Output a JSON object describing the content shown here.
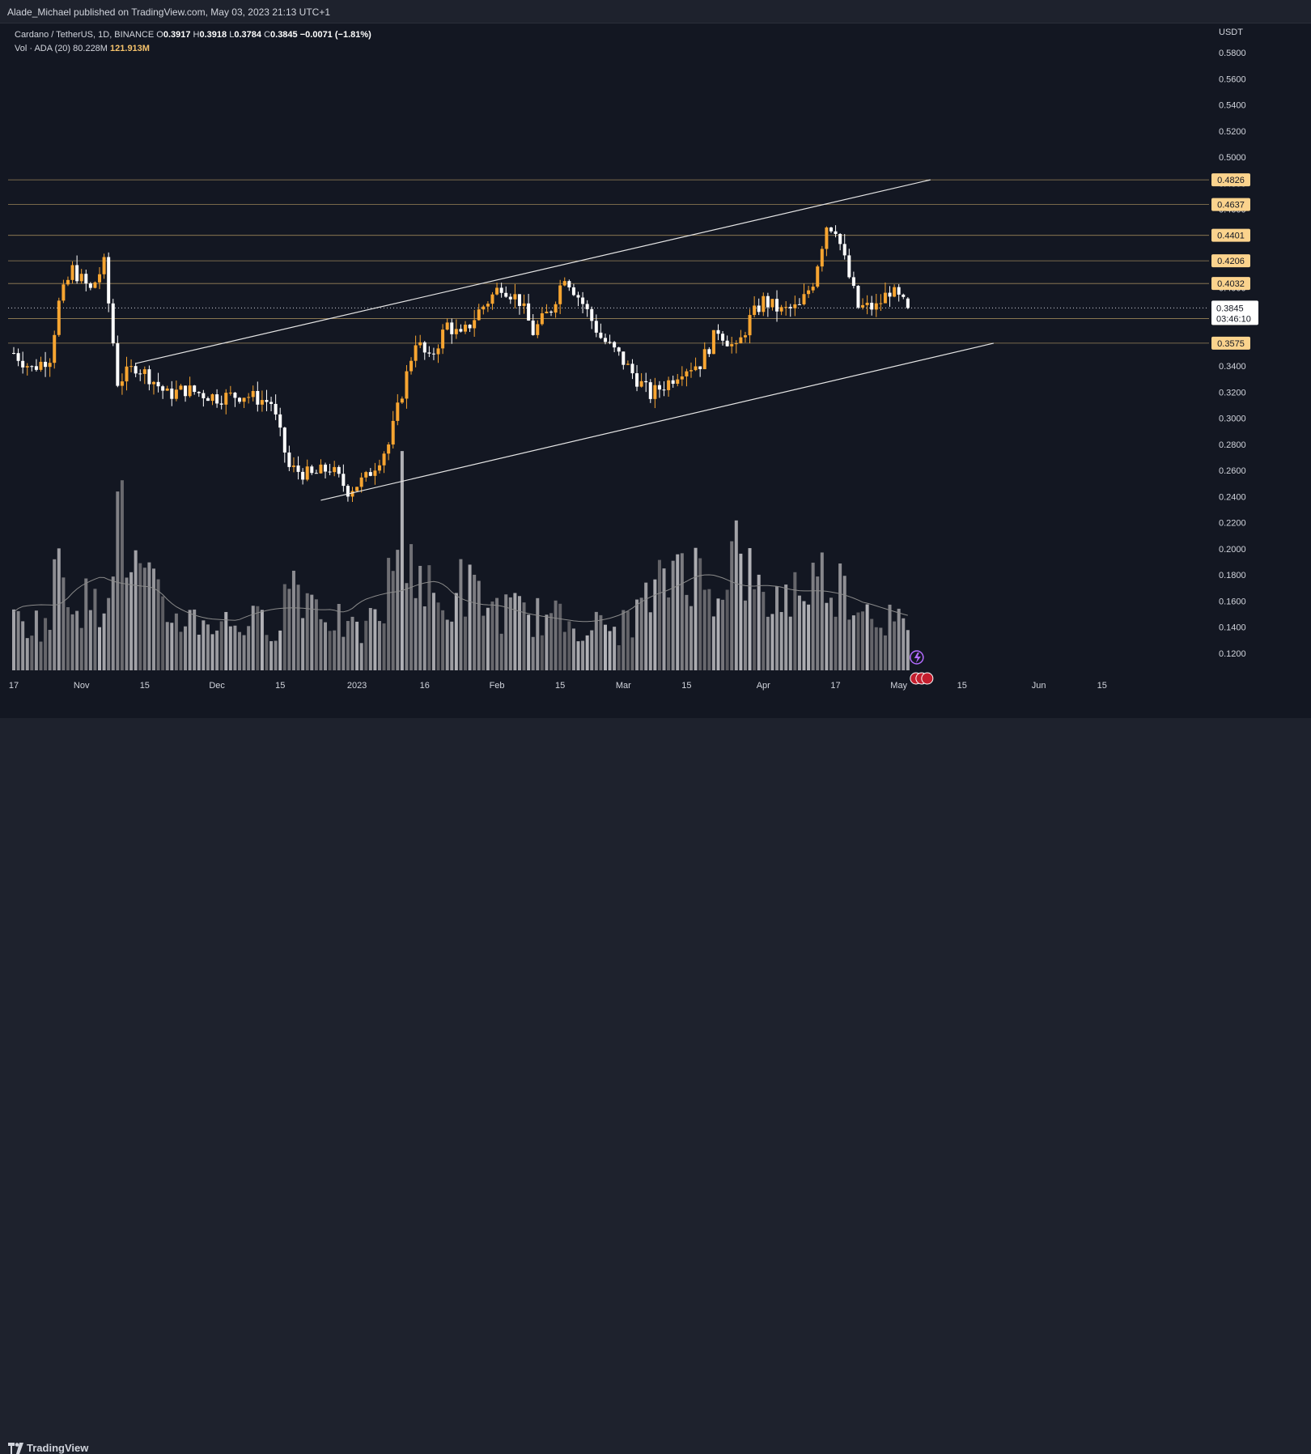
{
  "header": {
    "publisher_line": "Alade_Michael published on TradingView.com, May 03, 2023 21:13 UTC+1"
  },
  "legend": {
    "symbol": "Cardano / TetherUS, 1D, BINANCE",
    "o_label": "O",
    "o_value": "0.3917",
    "h_label": "H",
    "h_value": "0.3918",
    "l_label": "L",
    "l_value": "0.3784",
    "c_label": "C",
    "c_value": "0.3845",
    "change": "−0.0071 (−1.81%)",
    "vol_label": "Vol · ADA (20)",
    "vol_value": "80.228M",
    "vol_ma": "121.913M"
  },
  "footer": {
    "brand": "TradingView"
  },
  "colors": {
    "background": "#131722",
    "up_candle": "#f7a531",
    "down_candle": "#ffffff",
    "level_line": "#c8a86a",
    "price_tag": "#fbd38d",
    "current_tag": "#ffffff"
  },
  "chart_data": {
    "type": "candlestick",
    "symbol": "ADAUSDT",
    "interval": "1D",
    "y_unit": "USDT",
    "ylim": [
      0.11,
      0.595
    ],
    "y_ticks": [
      "0.5800",
      "0.5600",
      "0.5400",
      "0.5200",
      "0.5000",
      "0.4800",
      "0.4600",
      "0.4400",
      "0.4200",
      "0.4000",
      "0.3800",
      "0.3600",
      "0.3400",
      "0.3200",
      "0.3000",
      "0.2800",
      "0.2600",
      "0.2400",
      "0.2200",
      "0.2000",
      "0.1800",
      "0.1600",
      "0.1400",
      "0.1200"
    ],
    "x_tick_labels": [
      {
        "date": "2022-10-17",
        "label": "17"
      },
      {
        "date": "2022-11-01",
        "label": "Nov"
      },
      {
        "date": "2022-11-15",
        "label": "15"
      },
      {
        "date": "2022-12-01",
        "label": "Dec"
      },
      {
        "date": "2022-12-15",
        "label": "15"
      },
      {
        "date": "2023-01-01",
        "label": "2023"
      },
      {
        "date": "2023-01-16",
        "label": "16"
      },
      {
        "date": "2023-02-01",
        "label": "Feb"
      },
      {
        "date": "2023-02-15",
        "label": "15"
      },
      {
        "date": "2023-03-01",
        "label": "Mar"
      },
      {
        "date": "2023-03-15",
        "label": "15"
      },
      {
        "date": "2023-04-01",
        "label": "Apr"
      },
      {
        "date": "2023-04-17",
        "label": "17"
      },
      {
        "date": "2023-05-01",
        "label": "May"
      },
      {
        "date": "2023-05-15",
        "label": "15"
      },
      {
        "date": "2023-06-01",
        "label": "Jun"
      },
      {
        "date": "2023-06-15",
        "label": "15"
      }
    ],
    "x_range": [
      "2022-10-17",
      "2023-06-25"
    ],
    "price_levels": [
      {
        "value": 0.4826,
        "label": "0.4826"
      },
      {
        "value": 0.4637,
        "label": "0.4637"
      },
      {
        "value": 0.4401,
        "label": "0.4401"
      },
      {
        "value": 0.4206,
        "label": "0.4206"
      },
      {
        "value": 0.4032,
        "label": "0.4032"
      },
      {
        "value": 0.3764,
        "label": "0.3764"
      },
      {
        "value": 0.3575,
        "label": "0.3575"
      }
    ],
    "current_price": {
      "value": 0.3845,
      "label": "0.3845",
      "countdown": "03:46:10"
    },
    "trendlines": [
      {
        "from": {
          "date": "2022-11-13",
          "price": 0.342
        },
        "to": {
          "date": "2023-05-08",
          "price": 0.4826
        }
      },
      {
        "from": {
          "date": "2022-12-24",
          "price": 0.2372
        },
        "to": {
          "date": "2023-05-22",
          "price": 0.3575
        }
      }
    ],
    "series": [
      {
        "name": "Price",
        "kind": "ohlc_key_points",
        "points": [
          [
            "2022-10-17",
            0.35
          ],
          [
            "2022-10-21",
            0.338
          ],
          [
            "2022-10-25",
            0.347
          ],
          [
            "2022-10-27",
            0.388
          ],
          [
            "2022-10-30",
            0.414
          ],
          [
            "2022-11-03",
            0.398
          ],
          [
            "2022-11-06",
            0.418
          ],
          [
            "2022-11-09",
            0.328
          ],
          [
            "2022-11-13",
            0.34
          ],
          [
            "2022-11-16",
            0.332
          ],
          [
            "2022-11-20",
            0.318
          ],
          [
            "2022-11-24",
            0.322
          ],
          [
            "2022-12-01",
            0.316
          ],
          [
            "2022-12-07",
            0.318
          ],
          [
            "2022-12-13",
            0.312
          ],
          [
            "2022-12-17",
            0.262
          ],
          [
            "2022-12-22",
            0.256
          ],
          [
            "2022-12-26",
            0.262
          ],
          [
            "2022-12-30",
            0.245
          ],
          [
            "2023-01-03",
            0.254
          ],
          [
            "2023-01-08",
            0.28
          ],
          [
            "2023-01-11",
            0.32
          ],
          [
            "2023-01-14",
            0.36
          ],
          [
            "2023-01-17",
            0.344
          ],
          [
            "2023-01-21",
            0.372
          ],
          [
            "2023-01-24",
            0.362
          ],
          [
            "2023-01-28",
            0.382
          ],
          [
            "2023-02-02",
            0.402
          ],
          [
            "2023-02-06",
            0.39
          ],
          [
            "2023-02-09",
            0.366
          ],
          [
            "2023-02-13",
            0.384
          ],
          [
            "2023-02-16",
            0.41
          ],
          [
            "2023-02-20",
            0.388
          ],
          [
            "2023-02-24",
            0.362
          ],
          [
            "2023-02-28",
            0.348
          ],
          [
            "2023-03-04",
            0.33
          ],
          [
            "2023-03-07",
            0.318
          ],
          [
            "2023-03-11",
            0.328
          ],
          [
            "2023-03-14",
            0.338
          ],
          [
            "2023-03-18",
            0.342
          ],
          [
            "2023-03-22",
            0.368
          ],
          [
            "2023-03-26",
            0.352
          ],
          [
            "2023-03-29",
            0.376
          ],
          [
            "2023-04-01",
            0.39
          ],
          [
            "2023-04-05",
            0.382
          ],
          [
            "2023-04-09",
            0.385
          ],
          [
            "2023-04-12",
            0.405
          ],
          [
            "2023-04-15",
            0.448
          ],
          [
            "2023-04-17",
            0.446
          ],
          [
            "2023-04-20",
            0.408
          ],
          [
            "2023-04-22",
            0.385
          ],
          [
            "2023-04-26",
            0.385
          ],
          [
            "2023-04-29",
            0.398
          ],
          [
            "2023-05-03",
            0.3845
          ]
        ]
      },
      {
        "name": "Vol · ADA (20)",
        "kind": "volume_key_points",
        "unit": "M",
        "points": [
          [
            "2022-10-17",
            95
          ],
          [
            "2022-10-25",
            95
          ],
          [
            "2022-10-27",
            240
          ],
          [
            "2022-10-30",
            150
          ],
          [
            "2022-11-05",
            120
          ],
          [
            "2022-11-09",
            320
          ],
          [
            "2022-11-12",
            210
          ],
          [
            "2022-11-20",
            110
          ],
          [
            "2022-12-01",
            95
          ],
          [
            "2022-12-15",
            95
          ],
          [
            "2022-12-17",
            190
          ],
          [
            "2022-12-26",
            110
          ],
          [
            "2023-01-01",
            70
          ],
          [
            "2023-01-07",
            120
          ],
          [
            "2023-01-11",
            330
          ],
          [
            "2023-01-14",
            200
          ],
          [
            "2023-01-20",
            110
          ],
          [
            "2023-01-24",
            170
          ],
          [
            "2023-02-01",
            120
          ],
          [
            "2023-02-15",
            100
          ],
          [
            "2023-02-28",
            80
          ],
          [
            "2023-03-10",
            170
          ],
          [
            "2023-03-14",
            240
          ],
          [
            "2023-03-20",
            150
          ],
          [
            "2023-03-26",
            240
          ],
          [
            "2023-04-01",
            130
          ],
          [
            "2023-04-15",
            190
          ],
          [
            "2023-04-22",
            140
          ],
          [
            "2023-05-03",
            80
          ]
        ],
        "ma_current": 121.913,
        "last_value": 80.228
      }
    ]
  }
}
